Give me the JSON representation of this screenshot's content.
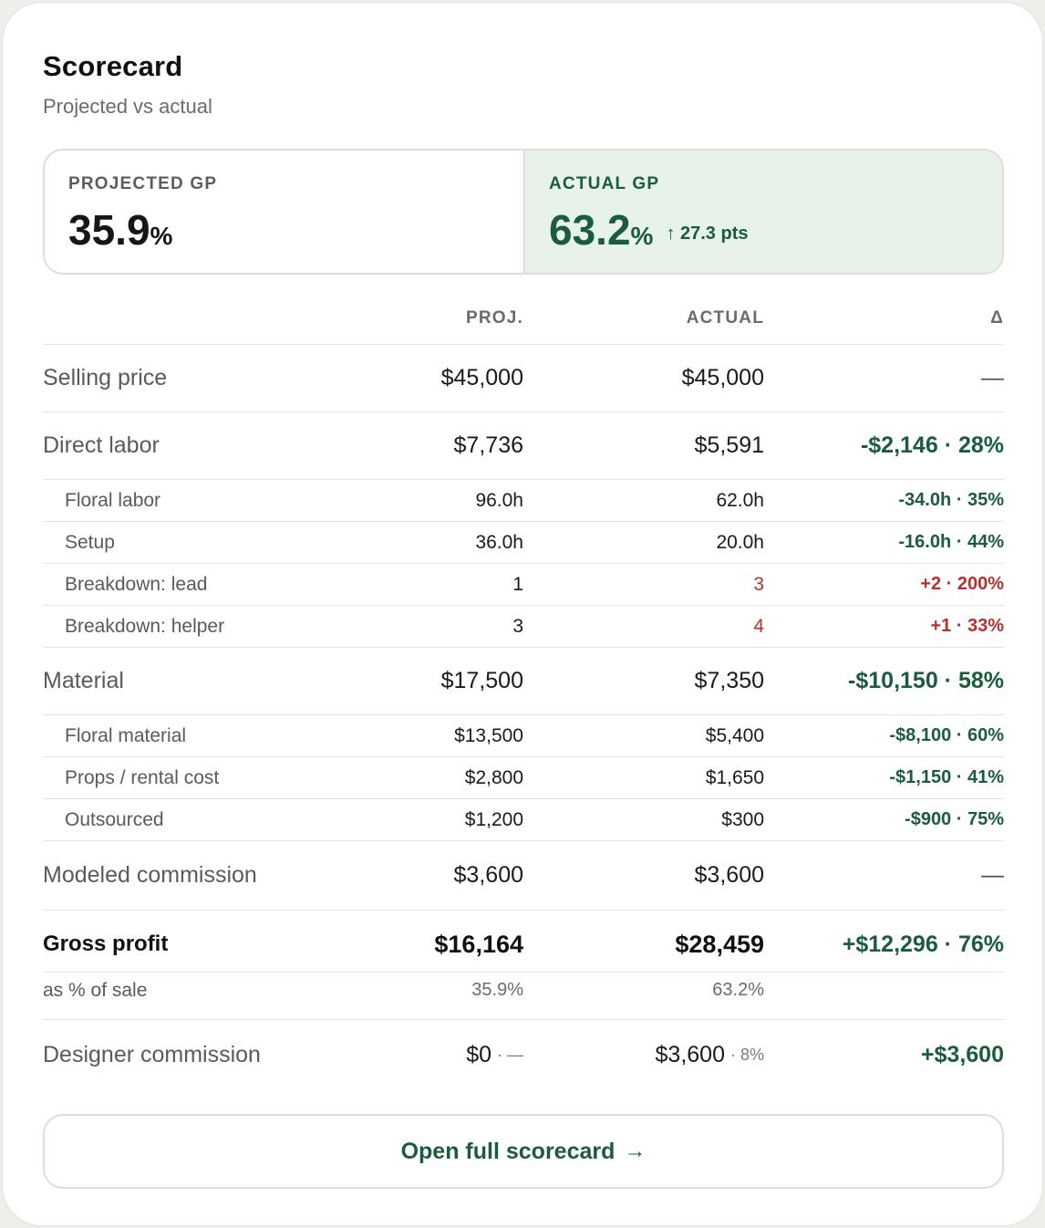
{
  "card": {
    "title": "Scorecard",
    "subtitle": "Projected vs actual"
  },
  "gp": {
    "projected_label": "PROJECTED GP",
    "projected_value": "35.9",
    "projected_unit": "%",
    "actual_label": "ACTUAL GP",
    "actual_value": "63.2",
    "actual_unit": "%",
    "actual_delta": "↑ 27.3 pts"
  },
  "table": {
    "headers": {
      "proj": "PROJ.",
      "actual": "ACTUAL",
      "delta": "Δ"
    },
    "selling_price": {
      "label": "Selling price",
      "proj": "$45,000",
      "actual": "$45,000",
      "delta": "—"
    },
    "direct_labor": {
      "label": "Direct labor",
      "proj": "$7,736",
      "actual": "$5,591",
      "delta": "-$2,146 · 28%"
    },
    "floral_labor": {
      "label": "Floral labor",
      "proj": "96.0h",
      "actual": "62.0h",
      "delta": "-34.0h · 35%"
    },
    "setup": {
      "label": "Setup",
      "proj": "36.0h",
      "actual": "20.0h",
      "delta": "-16.0h · 44%"
    },
    "breakdown_lead": {
      "label": "Breakdown: lead",
      "proj": "1",
      "actual": "3",
      "delta": "+2 · 200%"
    },
    "breakdown_helper": {
      "label": "Breakdown: helper",
      "proj": "3",
      "actual": "4",
      "delta": "+1 · 33%"
    },
    "material": {
      "label": "Material",
      "proj": "$17,500",
      "actual": "$7,350",
      "delta": "-$10,150 · 58%"
    },
    "floral_material": {
      "label": "Floral material",
      "proj": "$13,500",
      "actual": "$5,400",
      "delta": "-$8,100 · 60%"
    },
    "props": {
      "label": "Props / rental cost",
      "proj": "$2,800",
      "actual": "$1,650",
      "delta": "-$1,150 · 41%"
    },
    "outsourced": {
      "label": "Outsourced",
      "proj": "$1,200",
      "actual": "$300",
      "delta": "-$900 · 75%"
    },
    "modeled_commission": {
      "label": "Modeled commission",
      "proj": "$3,600",
      "actual": "$3,600",
      "delta": "—"
    },
    "gross_profit": {
      "label": "Gross profit",
      "proj": "$16,164",
      "actual": "$28,459",
      "delta": "+$12,296 · 76%"
    },
    "pct_of_sale": {
      "label": "as % of sale",
      "proj": "35.9%",
      "actual": "63.2%"
    },
    "designer_commission": {
      "label": "Designer commission",
      "proj": "$0",
      "proj_note": "· —",
      "actual": "$3,600",
      "actual_note": "· 8%",
      "delta": "+$3,600"
    }
  },
  "button": {
    "label": "Open full scorecard",
    "arrow": "→"
  },
  "colors": {
    "accent_green": "#1a5c3d",
    "negative_red": "#b73030",
    "actual_bg": "#e6f2ea"
  }
}
